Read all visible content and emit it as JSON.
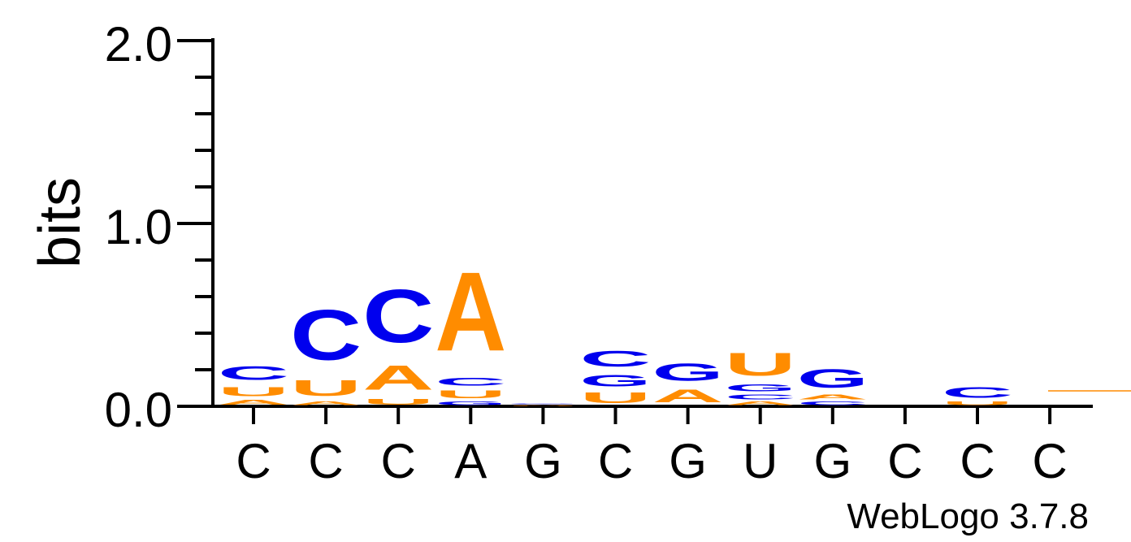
{
  "chart_data": {
    "type": "sequence-logo",
    "ylabel": "bits",
    "ylim": [
      0,
      2.0
    ],
    "y_tick_labels": [
      "0.0",
      "1.0",
      "2.0"
    ],
    "x_tick_labels": [
      "C",
      "C",
      "C",
      "A",
      "G",
      "C",
      "G",
      "U",
      "G",
      "C",
      "C",
      "C"
    ],
    "footer": "WebLogo 3.7.8",
    "colors": {
      "C": "#0000ee",
      "G": "#0000ee",
      "A": "#ff8c00",
      "U": "#ff8c00"
    },
    "positions": [
      {
        "stack": [
          {
            "letter": "A",
            "bits": 0.04
          },
          {
            "letter": "U",
            "bits": 0.08
          },
          {
            "letter": "C",
            "bits": 0.12
          }
        ]
      },
      {
        "stack": [
          {
            "letter": "A",
            "bits": 0.03
          },
          {
            "letter": "U",
            "bits": 0.14
          },
          {
            "letter": "C",
            "bits": 0.44
          }
        ]
      },
      {
        "stack": [
          {
            "letter": "U",
            "bits": 0.05
          },
          {
            "letter": "A",
            "bits": 0.21
          },
          {
            "letter": "C",
            "bits": 0.46
          }
        ]
      },
      {
        "stack": [
          {
            "letter": "G",
            "bits": 0.03
          },
          {
            "letter": "U",
            "bits": 0.07
          },
          {
            "letter": "C",
            "bits": 0.07
          },
          {
            "letter": "A",
            "bits": 0.69
          }
        ]
      },
      {
        "stack": [
          {
            "letter": "U",
            "bits": 0.005
          },
          {
            "letter": "A",
            "bits": 0.005
          },
          {
            "letter": "C",
            "bits": 0.005
          },
          {
            "letter": "G",
            "bits": 0.005
          }
        ]
      },
      {
        "stack": [
          {
            "letter": "U",
            "bits": 0.09
          },
          {
            "letter": "G",
            "bits": 0.1
          },
          {
            "letter": "C",
            "bits": 0.14
          }
        ]
      },
      {
        "stack": [
          {
            "letter": "A",
            "bits": 0.11
          },
          {
            "letter": "G",
            "bits": 0.15
          }
        ]
      },
      {
        "stack": [
          {
            "letter": "A",
            "bits": 0.03
          },
          {
            "letter": "C",
            "bits": 0.04
          },
          {
            "letter": "G",
            "bits": 0.06
          },
          {
            "letter": "U",
            "bits": 0.2
          }
        ]
      },
      {
        "stack": [
          {
            "letter": "C",
            "bits": 0.03
          },
          {
            "letter": "A",
            "bits": 0.04
          },
          {
            "letter": "G",
            "bits": 0.16
          }
        ]
      },
      {
        "stack": []
      },
      {
        "stack": [
          {
            "letter": "U",
            "bits": 0.03
          },
          {
            "letter": "C",
            "bits": 0.09
          }
        ]
      },
      {
        "stack": []
      }
    ]
  }
}
